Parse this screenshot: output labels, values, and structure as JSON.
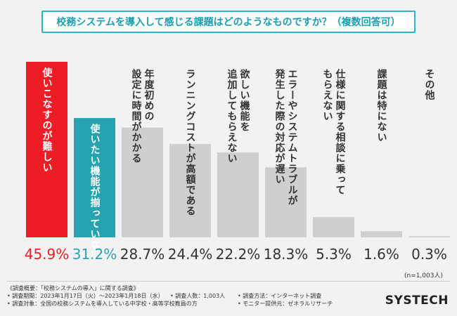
{
  "title": "校務システムを導入して感じる課題はどのようなものですか？（複数回答可）",
  "colors": {
    "accent1": "#ee1c24",
    "accent2": "#26a3b0",
    "neutral": "#cfcfcf",
    "title_border": "#2bb3c0",
    "title_text": "#1a9fad"
  },
  "chart_data": {
    "type": "bar",
    "title": "校務システムを導入して感じる課題はどのようなものですか？（複数回答可）",
    "unit": "%",
    "ylim": [
      0,
      45.9
    ],
    "categories": [
      "使いこなすのが難しい",
      "使いたい機能が揃っていない",
      "年度初めの設定に時間がかかる",
      "ランニングコストが高額である",
      "欲しい機能を追加してもらえない",
      "エラーやシステムトラブルが発生した際の対応が遅い",
      "仕様に関する相談に乗ってもらえない",
      "課題は特にない",
      "その他"
    ],
    "label_lines": [
      [
        "使いこなすのが難しい"
      ],
      [
        "使いたい機能が揃っていない"
      ],
      [
        "年度初めの",
        "設定に時間がかかる"
      ],
      [
        "ランニングコストが高額である"
      ],
      [
        "欲しい機能を",
        "追加してもらえない"
      ],
      [
        "エラーやシステムトラブルが",
        "発生した際の対応が遅い"
      ],
      [
        "仕様に関する相談に乗って",
        "もらえない"
      ],
      [
        "課題は特にない"
      ],
      [
        "その他"
      ]
    ],
    "values": [
      45.9,
      31.2,
      28.7,
      24.4,
      22.2,
      18.3,
      5.3,
      1.6,
      0.3
    ],
    "value_labels": [
      "45.9%",
      "31.2%",
      "28.7%",
      "24.4%",
      "22.2%",
      "18.3%",
      "5.3%",
      "1.6%",
      "0.3%"
    ],
    "sample_note": "(n=1,003人)"
  },
  "survey": {
    "overview": "《調査概要：「校務システムの導入」に関する調査》",
    "period": "• 調査期間：2023年1月17日（火）〜2023年1月18日（水）",
    "people": "• 調査人数：1,003人",
    "method": "• 調査方法：インターネット調査",
    "target": "• 調査対象：全国の校務システムを導入している中学校・高等学校教員の方",
    "monitor": "• モニター提供元：ゼネラルリサーチ"
  },
  "logo": "SYSTECH"
}
